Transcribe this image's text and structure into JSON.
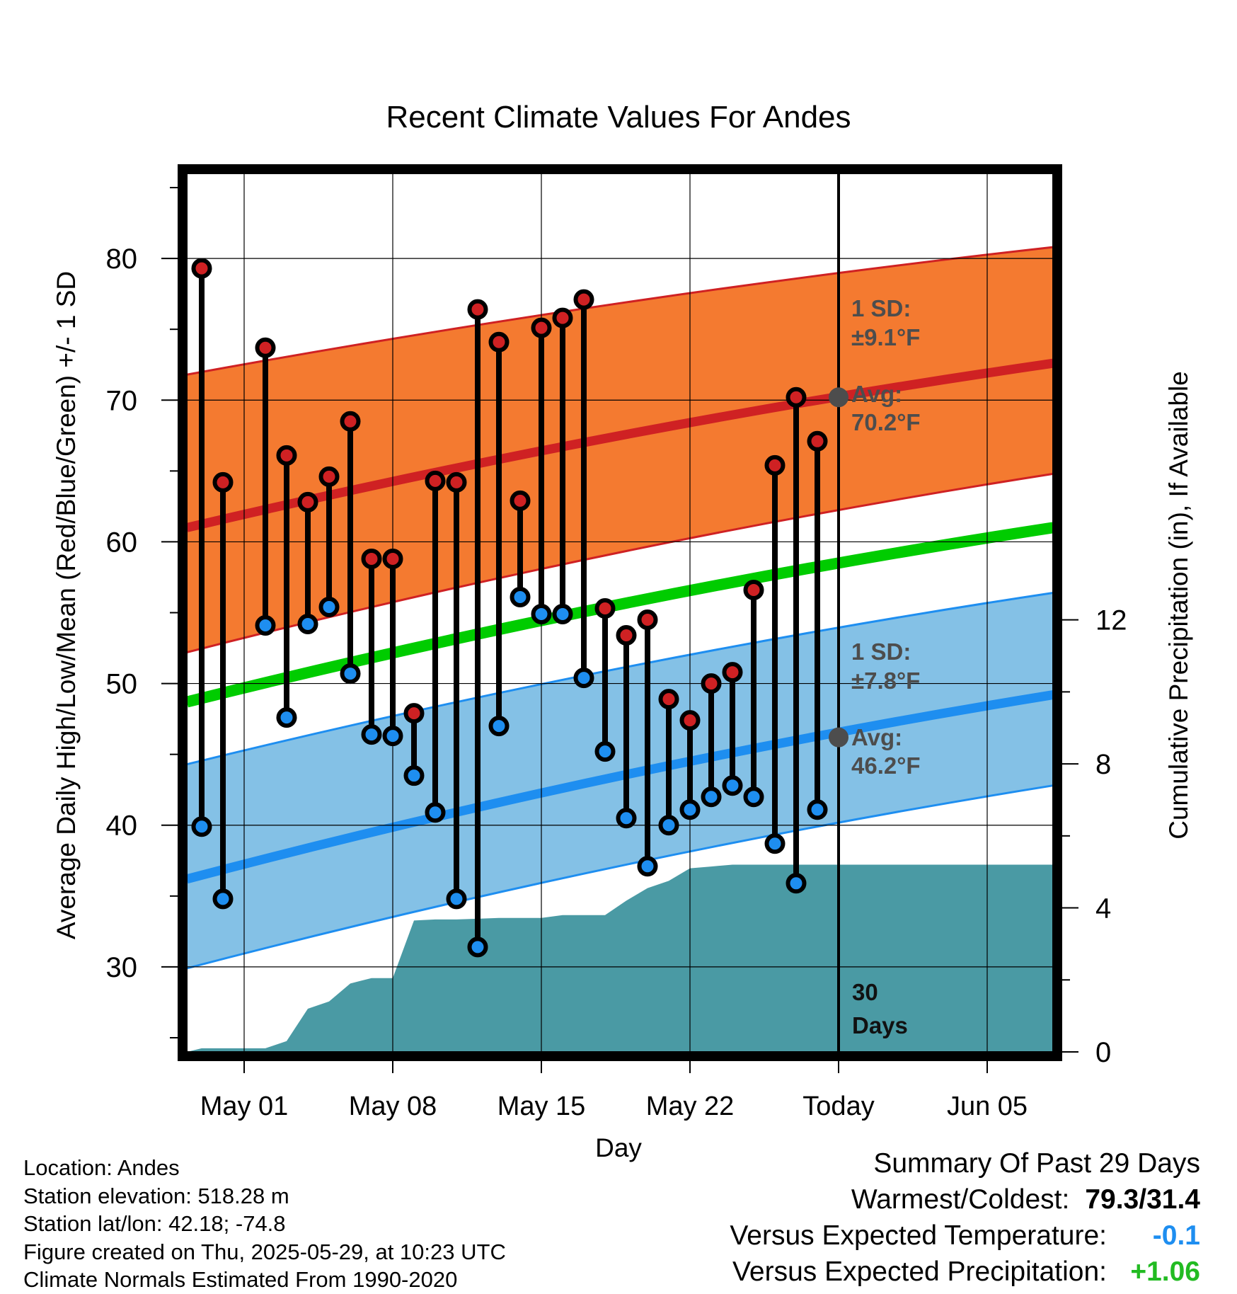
{
  "chart_data": {
    "type": "line",
    "title": "Recent Climate Values For Andes",
    "xlabel": "Day",
    "ylabel": "Average Daily High/Low/Mean (Red/Blue/Green) +/- 1 SD",
    "y2label": "Cumulative Precipitation (in), If Available",
    "x_ticks": [
      "May 01",
      "May 08",
      "May 15",
      "May 22",
      "Today",
      "Jun 05"
    ],
    "x_tick_days": [
      3,
      10,
      17,
      24,
      31,
      38
    ],
    "xlim": [
      0.3,
      41.1
    ],
    "ylim": [
      24,
      86
    ],
    "y_ticks": [
      30,
      40,
      50,
      60,
      70,
      80
    ],
    "y2lim": [
      0,
      24.4
    ],
    "y2_ticks": [
      0,
      4,
      8,
      12
    ],
    "today_day": 31,
    "today_label_line1": "30",
    "today_label_line2": "Days",
    "grid": true,
    "colors": {
      "high_band": "#f47a30",
      "high_mean_line": "#cf2123",
      "low_band": "#84c1e6",
      "low_mean_line": "#1e8ef0",
      "mean_line": "#00cc00",
      "precip": "#4a9aa4",
      "high_marker": "#cf2123",
      "low_marker": "#1e8ef0",
      "annotation": "#4d4d4d"
    },
    "normals": {
      "x": [
        0.3,
        41.1
      ],
      "high_avg": [
        61.0,
        72.6
      ],
      "high_upper": [
        71.8,
        80.8
      ],
      "high_lower": [
        52.2,
        64.8
      ],
      "low_avg": [
        36.2,
        49.2
      ],
      "low_upper": [
        44.3,
        56.4
      ],
      "low_lower": [
        29.9,
        42.8
      ],
      "mean_avg": [
        48.7,
        61.0
      ]
    },
    "series": [
      {
        "name": "High",
        "days": [
          1,
          2,
          4,
          5,
          6,
          7,
          8,
          9,
          10,
          11,
          12,
          13,
          14,
          15,
          16,
          17,
          18,
          19,
          20,
          21,
          22,
          23,
          24,
          25,
          26,
          27,
          28,
          29,
          30
        ],
        "values": [
          79.3,
          64.2,
          73.7,
          66.1,
          62.8,
          64.6,
          68.5,
          58.8,
          58.8,
          47.9,
          64.3,
          64.2,
          76.4,
          74.1,
          62.9,
          75.1,
          75.8,
          77.1,
          55.3,
          53.4,
          54.5,
          48.9,
          47.4,
          50.0,
          50.8,
          56.6,
          65.4,
          70.2,
          67.1
        ]
      },
      {
        "name": "Low",
        "days": [
          1,
          2,
          4,
          5,
          6,
          7,
          8,
          9,
          10,
          11,
          12,
          13,
          14,
          15,
          16,
          17,
          18,
          19,
          20,
          21,
          22,
          23,
          24,
          25,
          26,
          27,
          28,
          29,
          30
        ],
        "values": [
          39.9,
          34.8,
          54.1,
          47.6,
          54.2,
          55.4,
          50.7,
          46.4,
          46.3,
          43.5,
          40.9,
          34.8,
          31.4,
          47.0,
          56.1,
          54.9,
          54.9,
          50.4,
          45.2,
          40.5,
          37.1,
          40.0,
          41.1,
          42.0,
          42.8,
          42.0,
          38.7,
          35.9,
          41.1
        ]
      }
    ],
    "precip": {
      "days": [
        0.3,
        1,
        2,
        3,
        4,
        5,
        6,
        7,
        8,
        9,
        10,
        11,
        12,
        13,
        14,
        15,
        16,
        17,
        18,
        19,
        20,
        21,
        22,
        23,
        24,
        25,
        26,
        27,
        28,
        29,
        30,
        31,
        41.1
      ],
      "values": [
        0.0,
        0.1,
        0.1,
        0.1,
        0.1,
        0.3,
        1.2,
        1.4,
        1.9,
        2.05,
        2.05,
        3.65,
        3.68,
        3.68,
        3.7,
        3.72,
        3.72,
        3.72,
        3.8,
        3.8,
        3.8,
        4.2,
        4.55,
        4.75,
        5.1,
        5.15,
        5.2,
        5.2,
        5.2,
        5.2,
        5.2,
        5.2,
        5.2
      ]
    },
    "annotations": {
      "high_sd_label": "1 SD:",
      "high_sd_value": "±9.1°F",
      "high_avg_label": "Avg:",
      "high_avg_value": "70.2°F",
      "high_avg_point": 70.2,
      "low_sd_label": "1 SD:",
      "low_sd_value": "±7.8°F",
      "low_avg_label": "Avg:",
      "low_avg_value": "46.2°F",
      "low_avg_point": 46.2
    }
  },
  "footer": {
    "location": "Location: Andes",
    "elevation": "Station elevation: 518.28 m",
    "latlon": "Station lat/lon: 42.18; -74.8",
    "created": "Figure created on Thu, 2025-05-29, at 10:23 UTC",
    "normals": "Climate Normals Estimated From 1990-2020"
  },
  "summary": {
    "title": "Summary Of Past 29 Days",
    "warm_cold_label": "Warmest/Coldest:",
    "warm_cold_value": "79.3/31.4",
    "temp_label": "Versus Expected Temperature:",
    "temp_value": "-0.1",
    "temp_color": "#1e8ef0",
    "precip_label": "Versus Expected Precipitation:",
    "precip_value": "+1.06",
    "precip_color": "#22bb22"
  }
}
